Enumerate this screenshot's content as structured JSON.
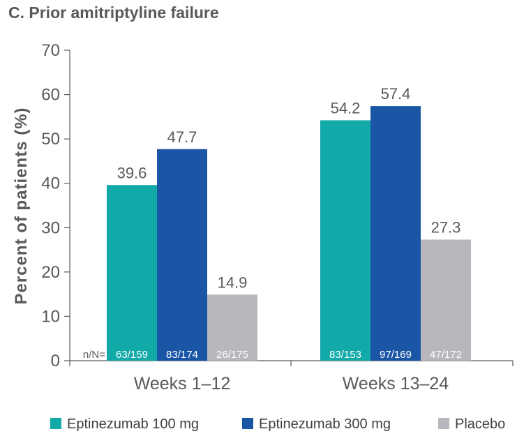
{
  "chart_data": {
    "type": "bar",
    "title": "C.  Prior amitriptyline failure",
    "ylabel": "Percent of patients (%)",
    "xlabel": "",
    "ylim": [
      0,
      70
    ],
    "yticks": [
      0,
      10,
      20,
      30,
      40,
      50,
      60,
      70
    ],
    "categories": [
      "Weeks  1–12",
      "Weeks  13–24"
    ],
    "n_prefix": "n/N=",
    "grid": false,
    "legend_position": "bottom",
    "series": [
      {
        "name": "Eptinezumab 100 mg",
        "color": "#12a9a9",
        "values": [
          39.6,
          54.2
        ],
        "value_labels": [
          "39.6",
          "54.2"
        ],
        "n_labels": [
          "63/159",
          "83/153"
        ]
      },
      {
        "name": "Eptinezumab 300 mg",
        "color": "#1b55a6",
        "values": [
          47.7,
          57.4
        ],
        "value_labels": [
          "47.7",
          "57.4"
        ],
        "n_labels": [
          "83/174",
          "97/169"
        ]
      },
      {
        "name": "Placebo",
        "color": "#b6b8bd",
        "values": [
          14.9,
          27.3
        ],
        "value_labels": [
          "14.9",
          "27.3"
        ],
        "n_labels": [
          "26/175",
          "47/172"
        ]
      }
    ]
  }
}
